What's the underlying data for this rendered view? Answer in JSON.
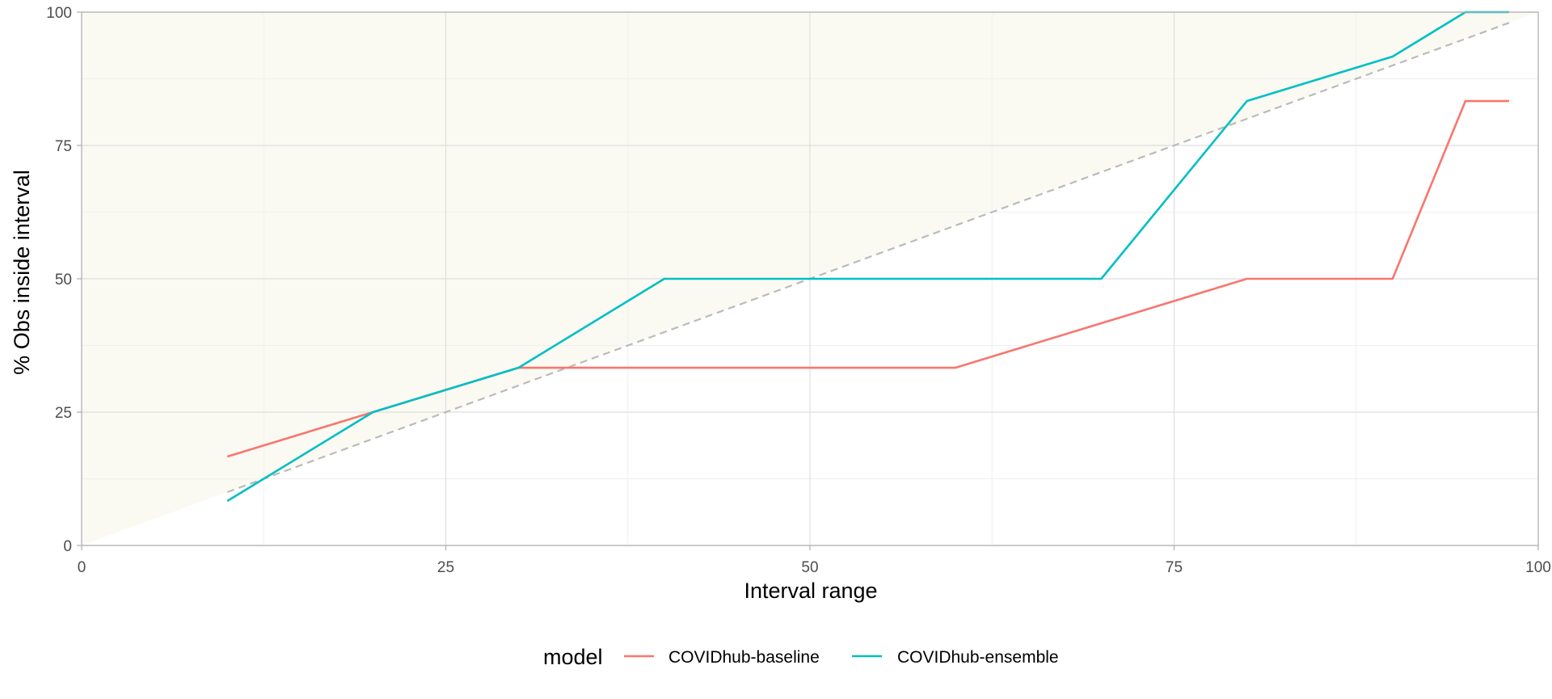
{
  "chart_data": {
    "type": "line",
    "title": "",
    "xlabel": "Interval range",
    "ylabel": "% Obs inside interval",
    "xlim": [
      0,
      100
    ],
    "ylim": [
      0,
      100
    ],
    "x_ticks": [
      0,
      25,
      50,
      75,
      100
    ],
    "y_ticks": [
      0,
      25,
      50,
      75,
      100
    ],
    "grid": true,
    "legend": {
      "title": "model",
      "position": "bottom"
    },
    "reference_line": {
      "style": "dashed",
      "color": "#bbbbbb",
      "x": [
        10,
        98
      ],
      "y": [
        10,
        98
      ]
    },
    "shaded_region": {
      "color": "#fafaf3",
      "polygon": [
        [
          0,
          0
        ],
        [
          100,
          100
        ],
        [
          0,
          100
        ]
      ]
    },
    "series": [
      {
        "name": "COVIDhub-baseline",
        "color": "#f8766d",
        "x": [
          10,
          20,
          30,
          40,
          50,
          60,
          70,
          80,
          90,
          95,
          98
        ],
        "y": [
          16.67,
          25,
          33.33,
          33.33,
          33.33,
          33.33,
          41.67,
          50,
          50,
          83.33,
          83.33
        ]
      },
      {
        "name": "COVIDhub-ensemble",
        "color": "#00bfc4",
        "x": [
          10,
          20,
          30,
          40,
          50,
          60,
          70,
          80,
          90,
          95,
          98
        ],
        "y": [
          8.33,
          25,
          33.33,
          50,
          50,
          50,
          50,
          83.33,
          91.67,
          100,
          100
        ]
      }
    ]
  }
}
